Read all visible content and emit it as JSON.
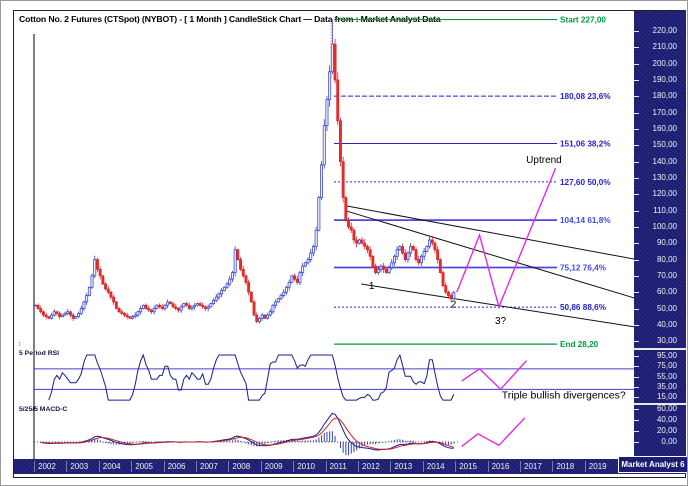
{
  "title": "Cotton No. 2 Futures (CTSpot) (NYBOT) -  [ 1 Month ] CandleStick Chart — Data from : Market Analyst Data",
  "branding": "Market Analyst 6",
  "colors": {
    "sidebar_navy": "#1c1c72",
    "fib_blue": "#2323cc",
    "fib_blue_bold": "#4949e0",
    "fib_green": "#009a44",
    "candle_up": "#2e3bd0",
    "candle_down": "#d92525",
    "projection_magenta": "#e32ae3",
    "rsi_line": "#1b1b8e",
    "macd_line": "#1b1b8e",
    "macd_signal": "#cc2222",
    "trendline_black": "#111111"
  },
  "chart_data": {
    "type": "candlestick",
    "title": "Cotton No. 2 Futures (CTSpot) (NYBOT) - [ 1 Month ] CandleStick Chart",
    "x_axis": {
      "years": [
        2002,
        2003,
        2004,
        2005,
        2006,
        2007,
        2008,
        2009,
        2010,
        2011,
        2012,
        2013,
        2014,
        2015,
        2016,
        2017,
        2018,
        2019
      ]
    },
    "price_axis": {
      "ticks": [
        220,
        210,
        200,
        190,
        180,
        170,
        160,
        150,
        140,
        130,
        120,
        110,
        100,
        90,
        80,
        70,
        60,
        50,
        40,
        30
      ],
      "range": [
        28,
        230
      ]
    },
    "rsi_axis": {
      "ticks": [
        95,
        75,
        55,
        35,
        15
      ]
    },
    "macd_axis": {
      "ticks": [
        60,
        40,
        20,
        0
      ]
    },
    "series": {
      "monthly_closes": {
        "start_year": 2002,
        "values": [
          52,
          50,
          48,
          46,
          45,
          44,
          46,
          48,
          47,
          45,
          46,
          47,
          48,
          46,
          44,
          45,
          47,
          50,
          54,
          58,
          63,
          70,
          80,
          74,
          70,
          65,
          62,
          60,
          57,
          54,
          50,
          48,
          47,
          46,
          45,
          44,
          45,
          46,
          48,
          50,
          52,
          50,
          49,
          48,
          50,
          52,
          51,
          50,
          52,
          54,
          53,
          51,
          50,
          49,
          51,
          53,
          52,
          50,
          51,
          52,
          53,
          52,
          51,
          50,
          51,
          53,
          55,
          57,
          59,
          61,
          63,
          65,
          68,
          72,
          86,
          80,
          74,
          70,
          66,
          60,
          54,
          46,
          42,
          44,
          46,
          44,
          46,
          48,
          52,
          54,
          56,
          58,
          60,
          63,
          66,
          70,
          68,
          66,
          72,
          76,
          78,
          80,
          84,
          88,
          98,
          118,
          138,
          162,
          178,
          195,
          212,
          190,
          165,
          140,
          118,
          104,
          100,
          98,
          92,
          90,
          92,
          90,
          88,
          86,
          82,
          76,
          72,
          74,
          76,
          74,
          72,
          75,
          78,
          82,
          86,
          88,
          84,
          80,
          84,
          88,
          86,
          80,
          78,
          82,
          85,
          88,
          92,
          90,
          86,
          80,
          72,
          64,
          60,
          58,
          56,
          60
        ],
        "all_time_high": 227.0,
        "high_month_index": 110
      }
    },
    "indicators": {
      "rsi": {
        "label": "5 Period RSI",
        "period": 5,
        "upper_level": 70,
        "lower_level": 30
      },
      "macd": {
        "label": "5/25/5 MACD-C",
        "fast": 5,
        "slow": 25,
        "signal": 5
      }
    },
    "fibonacci": {
      "levels": [
        {
          "label": "Start 227,00",
          "value": 227.0,
          "color": "#009a44",
          "width": 1.2,
          "dash": ""
        },
        {
          "label": "180,08 23,6%",
          "value": 180.08,
          "color": "#2323cc",
          "width": 1,
          "dash": "5,2"
        },
        {
          "label": "151,06 38,2%",
          "value": 151.06,
          "color": "#2323cc",
          "width": 1,
          "dash": ""
        },
        {
          "label": "127,60 50,0%",
          "value": 127.6,
          "color": "#2323cc",
          "width": 1,
          "dash": "2,2"
        },
        {
          "label": "104,14 61,8%",
          "value": 104.14,
          "color": "#4949e0",
          "width": 1.8,
          "dash": ""
        },
        {
          "label": "75,12 76,4%",
          "value": 75.12,
          "color": "#4949e0",
          "width": 1.8,
          "dash": ""
        },
        {
          "label": "50,86 88,6%",
          "value": 50.86,
          "color": "#2323cc",
          "width": 1,
          "dash": "2,2"
        },
        {
          "label": "End 28,20",
          "value": 28.2,
          "color": "#009a44",
          "width": 1.2,
          "dash": ""
        }
      ]
    },
    "trendlines": [
      {
        "points": [
          [
            2011.6,
            113
          ],
          [
            2020.6,
            80
          ]
        ]
      },
      {
        "points": [
          [
            2011.6,
            110
          ],
          [
            2020.6,
            56
          ]
        ]
      },
      {
        "points": [
          [
            2012.1,
            65
          ],
          [
            2020.6,
            38.5
          ]
        ]
      }
    ],
    "projections": {
      "price": [
        [
          2015.05,
          60
        ],
        [
          2015.75,
          95
        ],
        [
          2016.35,
          51
        ],
        [
          2018.1,
          136
        ]
      ],
      "rsi": [
        [
          2015.2,
          46
        ],
        [
          2015.75,
          70
        ],
        [
          2016.4,
          30
        ],
        [
          2017.2,
          86
        ]
      ],
      "macd": [
        [
          2015.2,
          -8
        ],
        [
          2015.7,
          15
        ],
        [
          2016.35,
          -6
        ],
        [
          2017.15,
          44
        ]
      ]
    },
    "peak_marker": {
      "year": 2011.17,
      "from_price": 227,
      "to_price": 191
    },
    "left_axis_marker": {
      "price": 29
    },
    "annotations": [
      {
        "panel": "price",
        "text": "Uptrend",
        "year": 2017.74,
        "value": 139,
        "size": 10
      },
      {
        "panel": "price",
        "text": "1",
        "year": 2012.42,
        "value": 62,
        "size": 10
      },
      {
        "panel": "price",
        "text": "2",
        "year": 2014.95,
        "value": 50.5,
        "size": 10
      },
      {
        "panel": "price",
        "text": "3?",
        "year": 2016.4,
        "value": 40.5,
        "size": 10
      },
      {
        "panel": "rsi",
        "text": "Triple bullish divergences?",
        "year": 2018.35,
        "value": 12,
        "size": 10.5
      }
    ]
  }
}
